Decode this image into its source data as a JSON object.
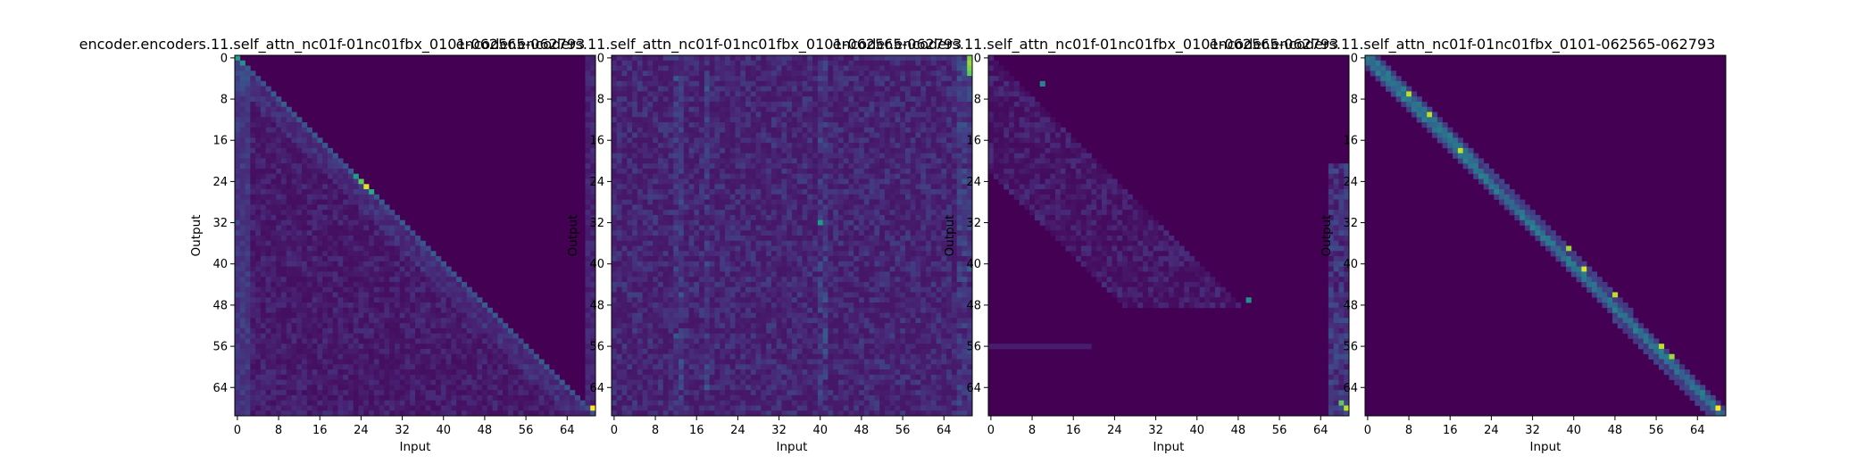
{
  "figure": {
    "background": "#ffffff"
  },
  "colormap": {
    "name": "viridis",
    "stops": [
      "#440154",
      "#482878",
      "#3e4989",
      "#31688e",
      "#26828e",
      "#1f9e89",
      "#35b779",
      "#6ece58",
      "#b5de2b",
      "#fde725"
    ]
  },
  "chart_data": [
    {
      "type": "heatmap",
      "title": "encoder.encoders.11.self_attn_nc01f-01nc01fbx_0101-062565-062793",
      "xlabel": "Input",
      "ylabel": "Output",
      "x_ticks": [
        "0",
        "8",
        "16",
        "24",
        "32",
        "40",
        "48",
        "56",
        "64"
      ],
      "y_ticks": [
        "0",
        "8",
        "16",
        "24",
        "32",
        "40",
        "48",
        "56",
        "64"
      ],
      "n_input": 70,
      "n_output": 70,
      "pattern": "lower-triangular diffuse attention with a bright diagonal; strongest cells near output 25 on the diagonal and at the bottom-right corner",
      "highlights": [
        {
          "output": 0,
          "input": 0,
          "value": 0.55
        },
        {
          "output": 1,
          "input": 1,
          "value": 0.5
        },
        {
          "output": 23,
          "input": 23,
          "value": 0.55
        },
        {
          "output": 24,
          "input": 24,
          "value": 0.75
        },
        {
          "output": 25,
          "input": 25,
          "value": 0.95
        },
        {
          "output": 26,
          "input": 26,
          "value": 0.6
        },
        {
          "output": 68,
          "input": 69,
          "value": 1.0
        }
      ]
    },
    {
      "type": "heatmap",
      "title": "encoder.encoders.11.self_attn_nc01f-01nc01fbx_0101-062565-062793",
      "xlabel": "Input",
      "ylabel": "Output",
      "x_ticks": [
        "0",
        "8",
        "16",
        "24",
        "32",
        "40",
        "48",
        "56",
        "64"
      ],
      "y_ticks": [
        "0",
        "8",
        "16",
        "24",
        "32",
        "40",
        "48",
        "56",
        "64"
      ],
      "n_input": 70,
      "n_output": 70,
      "pattern": "diffuse full attention with vertical stripes near inputs 12, 18, 40 and a bright last column at the top",
      "highlights": [
        {
          "output": 0,
          "input": 69,
          "value": 0.8
        },
        {
          "output": 1,
          "input": 69,
          "value": 0.85
        },
        {
          "output": 2,
          "input": 69,
          "value": 0.8
        },
        {
          "output": 3,
          "input": 69,
          "value": 0.75
        },
        {
          "output": 32,
          "input": 40,
          "value": 0.55
        }
      ]
    },
    {
      "type": "heatmap",
      "title": "encoder.encoders.11.self_attn_nc01f-01nc01fbx_0101-062565-062793",
      "xlabel": "Input",
      "ylabel": "Output",
      "x_ticks": [
        "0",
        "8",
        "16",
        "24",
        "32",
        "40",
        "48",
        "56",
        "64"
      ],
      "y_ticks": [
        "0",
        "8",
        "16",
        "24",
        "32",
        "40",
        "48",
        "56",
        "64"
      ],
      "n_input": 70,
      "n_output": 70,
      "pattern": "faint lower triangle up to output 48, then attention concentrated on the last inputs for outputs 48 to 69",
      "highlights": [
        {
          "output": 5,
          "input": 10,
          "value": 0.45
        },
        {
          "output": 47,
          "input": 50,
          "value": 0.5
        },
        {
          "output": 67,
          "input": 68,
          "value": 0.75
        },
        {
          "output": 68,
          "input": 69,
          "value": 0.9
        }
      ]
    },
    {
      "type": "heatmap",
      "title": "encoder.encoders.11.self_attn_nc01f-01nc01fbx_0101-062565-062793",
      "xlabel": "Input",
      "ylabel": "Output",
      "x_ticks": [
        "0",
        "8",
        "16",
        "24",
        "32",
        "40",
        "48",
        "56",
        "64"
      ],
      "y_ticks": [
        "0",
        "8",
        "16",
        "24",
        "32",
        "40",
        "48",
        "56",
        "64"
      ],
      "n_input": 70,
      "n_output": 70,
      "pattern": "sharp diagonal alignment with bright yellow cells along the diagonal",
      "highlights": [
        {
          "output": 7,
          "input": 8,
          "value": 0.9
        },
        {
          "output": 11,
          "input": 12,
          "value": 0.9
        },
        {
          "output": 18,
          "input": 18,
          "value": 0.9
        },
        {
          "output": 37,
          "input": 39,
          "value": 0.85
        },
        {
          "output": 41,
          "input": 42,
          "value": 0.95
        },
        {
          "output": 46,
          "input": 48,
          "value": 0.9
        },
        {
          "output": 56,
          "input": 57,
          "value": 0.9
        },
        {
          "output": 58,
          "input": 59,
          "value": 0.85
        },
        {
          "output": 68,
          "input": 68,
          "value": 1.0
        }
      ]
    }
  ]
}
